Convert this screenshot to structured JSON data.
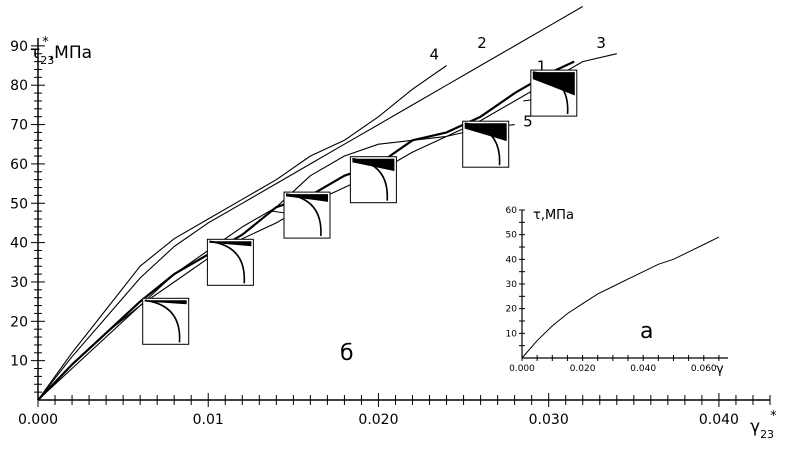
{
  "chart_data": [
    {
      "type": "line",
      "panel": "б",
      "ylabel": "τ23*,МПа",
      "ylabel_main": "τ",
      "ylabel_sub": "23",
      "ylabel_sup": "*",
      "ylabel_unit": ",МПа",
      "xlabel": "γ23*",
      "xlabel_main": "γ",
      "xlabel_sub": "23",
      "xlabel_sup": "*",
      "xlim": [
        0,
        0.043
      ],
      "ylim": [
        0,
        92
      ],
      "x_ticks": [
        0.0,
        0.01,
        0.02,
        0.03,
        0.04
      ],
      "x_tick_labels": [
        "0.000",
        "0.01",
        "0.020",
        "0.030",
        "0.040"
      ],
      "y_ticks": [
        10,
        20,
        30,
        40,
        50,
        60,
        70,
        80,
        90
      ],
      "y_tick_labels": [
        "10",
        "20",
        "30",
        "40",
        "50",
        "60",
        "70",
        "80",
        "90"
      ],
      "grid": false,
      "series": [
        {
          "name": "1",
          "x": [
            0,
            0.002,
            0.004,
            0.006,
            0.008,
            0.01,
            0.012,
            0.014,
            0.016,
            0.018,
            0.02,
            0.022,
            0.024,
            0.026,
            0.028,
            0.03,
            0.0315
          ],
          "y": [
            0,
            9,
            17,
            25,
            32,
            37,
            42,
            49,
            52,
            57,
            60,
            66,
            68,
            72,
            78,
            83,
            86
          ]
        },
        {
          "name": "2",
          "x": [
            0,
            0.002,
            0.004,
            0.006,
            0.008,
            0.01,
            0.012,
            0.014,
            0.016,
            0.018,
            0.02,
            0.022,
            0.024,
            0.026,
            0.028,
            0.03,
            0.032
          ],
          "y": [
            0,
            11,
            21,
            31,
            39,
            45,
            50,
            55,
            60,
            65,
            70,
            75,
            80,
            85,
            90,
            95,
            100
          ]
        },
        {
          "name": "3",
          "x": [
            0,
            0.002,
            0.004,
            0.006,
            0.008,
            0.01,
            0.012,
            0.014,
            0.016,
            0.018,
            0.02,
            0.022,
            0.024,
            0.026,
            0.028,
            0.03,
            0.032,
            0.034
          ],
          "y": [
            0,
            9,
            17,
            24,
            30,
            36,
            41,
            45,
            50,
            54,
            58,
            63,
            67,
            71,
            76,
            81,
            86,
            88
          ]
        },
        {
          "name": "4",
          "x": [
            0,
            0.002,
            0.004,
            0.006,
            0.008,
            0.01,
            0.012,
            0.014,
            0.016,
            0.018,
            0.02,
            0.022,
            0.024
          ],
          "y": [
            0,
            12,
            23,
            34,
            41,
            46,
            51,
            56,
            62,
            66,
            72,
            79,
            85
          ]
        },
        {
          "name": "5",
          "x": [
            0,
            0.002,
            0.004,
            0.006,
            0.008,
            0.01,
            0.012,
            0.014,
            0.016,
            0.018,
            0.02,
            0.022,
            0.024,
            0.026,
            0.028
          ],
          "y": [
            0,
            8,
            16,
            24,
            32,
            38,
            44,
            49,
            57,
            62,
            65,
            66,
            67,
            69,
            70
          ]
        }
      ],
      "label_points": [
        {
          "series": "4",
          "x": 0.023,
          "y": 86.5
        },
        {
          "series": "2",
          "x": 0.0258,
          "y": 89.5
        },
        {
          "series": "1",
          "x": 0.0293,
          "y": 83.5
        },
        {
          "series": "3",
          "x": 0.0328,
          "y": 89.5
        },
        {
          "series": "5",
          "x": 0.0285,
          "y": 69.5
        }
      ],
      "callouts": [
        {
          "from": [
            0.0067,
            25
          ],
          "to": [
            0.007,
            20
          ]
        },
        {
          "from": [
            0.011,
            38
          ],
          "to": [
            0.0113,
            34
          ]
        },
        {
          "from": [
            0.0137,
            48
          ],
          "to": [
            0.0155,
            47
          ]
        },
        {
          "from": [
            0.0185,
            57
          ],
          "to": [
            0.0198,
            55
          ]
        },
        {
          "from": [
            0.025,
            68
          ],
          "to": [
            0.0264,
            64
          ]
        },
        {
          "from": [
            0.0285,
            76
          ],
          "to": [
            0.0302,
            77
          ]
        }
      ],
      "inset_diagrams": [
        {
          "x": 0.0075,
          "y": 20,
          "fill": 0.12
        },
        {
          "x": 0.0113,
          "y": 35,
          "fill": 0.18
        },
        {
          "x": 0.0158,
          "y": 47,
          "fill": 0.28
        },
        {
          "x": 0.0197,
          "y": 56,
          "fill": 0.45
        },
        {
          "x": 0.0263,
          "y": 65,
          "fill": 0.65
        },
        {
          "x": 0.0303,
          "y": 78,
          "fill": 0.85
        }
      ]
    },
    {
      "type": "line",
      "panel": "а",
      "ylabel": "τ,МПа",
      "xlabel": "γ",
      "xlim": [
        0,
        0.068
      ],
      "ylim": [
        0,
        60
      ],
      "x_ticks": [
        0.0,
        0.02,
        0.04,
        0.06
      ],
      "x_tick_labels": [
        "0.000",
        "0.020",
        "0.040",
        "0.060"
      ],
      "y_ticks": [
        10,
        20,
        30,
        40,
        50,
        60
      ],
      "y_tick_labels": [
        "10",
        "20",
        "30",
        "40",
        "50",
        "60"
      ],
      "grid": false,
      "series": [
        {
          "x": [
            0,
            0.005,
            0.01,
            0.015,
            0.02,
            0.025,
            0.03,
            0.035,
            0.04,
            0.045,
            0.05,
            0.055,
            0.06,
            0.065
          ],
          "y": [
            0,
            7,
            13,
            18,
            22,
            26,
            29,
            32,
            35,
            38,
            40,
            43,
            46,
            49
          ]
        }
      ]
    }
  ]
}
